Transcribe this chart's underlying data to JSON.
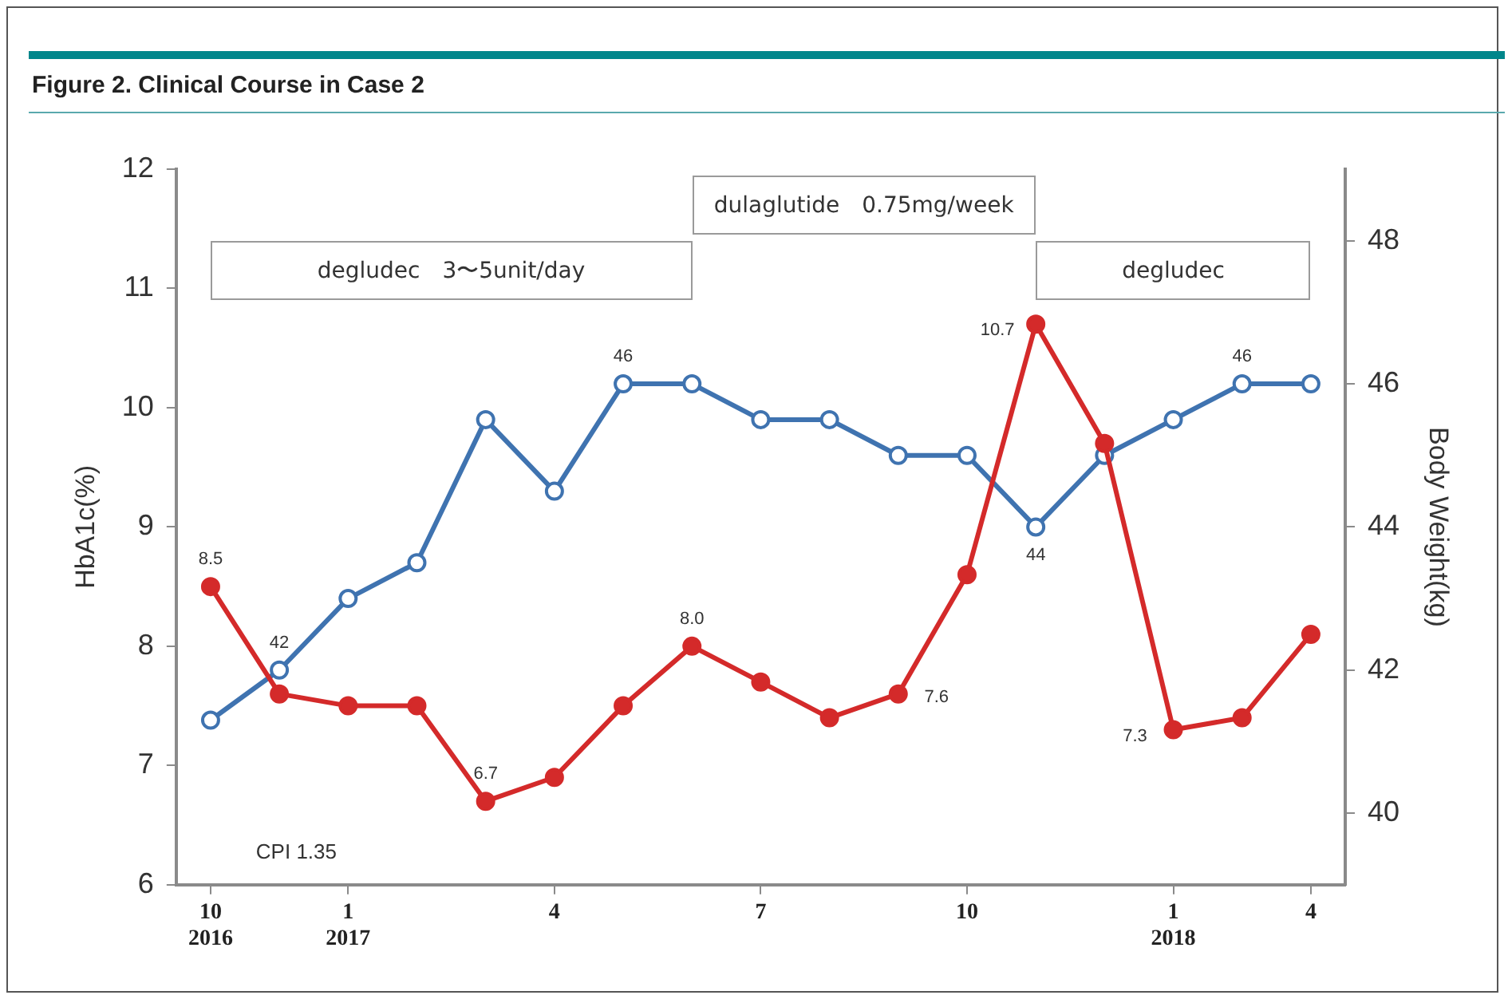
{
  "chart_data": {
    "type": "line",
    "title": "Figure 2. Clinical Course in Case 2",
    "categories": [
      "10\n2016",
      null,
      "1\n2017",
      null,
      null,
      "4",
      null,
      null,
      "7",
      null,
      null,
      "10",
      null,
      null,
      "1\n2018",
      null,
      "4"
    ],
    "series": [
      {
        "color": "#d42a2a",
        "values": [
          8.5,
          7.6,
          7.5,
          7.5,
          6.7,
          6.9,
          7.5,
          8.0,
          7.7,
          7.4,
          7.6,
          8.6,
          10.7,
          9.7,
          7.3,
          7.4,
          8.1
        ],
        "value_labels": [
          "8.5",
          null,
          null,
          null,
          "6.7",
          null,
          null,
          "8.0",
          null,
          null,
          "7.6",
          null,
          "10.7",
          null,
          "7.3",
          null,
          null
        ]
      },
      {
        "color": "#3f73b0",
        "axis": "y2",
        "values": [
          41.3,
          42,
          43,
          43.5,
          45.5,
          44.5,
          46,
          46,
          45.5,
          45.5,
          45,
          45,
          44,
          45,
          45.5,
          46,
          46
        ],
        "value_labels": [
          null,
          "42",
          null,
          null,
          null,
          null,
          "46",
          null,
          null,
          null,
          null,
          null,
          "44",
          null,
          null,
          "46",
          null
        ]
      }
    ],
    "ylabel": "HbA1c(%)",
    "y2label": "Body Weight(kg)",
    "ylim": [
      6,
      12
    ],
    "yticks": [
      6,
      7,
      8,
      9,
      10,
      11,
      12
    ],
    "y2lim": [
      39,
      49
    ],
    "y2ticks": [
      40,
      42,
      44,
      46,
      48
    ],
    "annotations": [
      "degludec　3〜5unit/day",
      "dulaglutide　0.75mg/week",
      "degludec",
      "CPI 1.35"
    ],
    "marker": "circle",
    "grid": false,
    "legend": false
  }
}
